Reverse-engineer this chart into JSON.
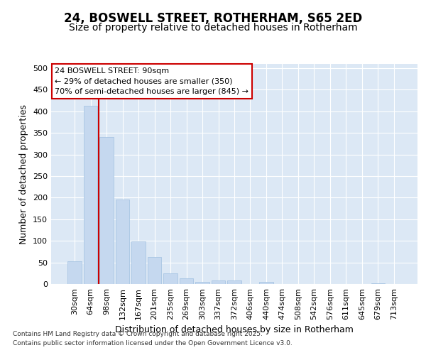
{
  "title_line1": "24, BOSWELL STREET, ROTHERHAM, S65 2ED",
  "title_line2": "Size of property relative to detached houses in Rotherham",
  "xlabel": "Distribution of detached houses by size in Rotherham",
  "ylabel": "Number of detached properties",
  "categories": [
    "30sqm",
    "64sqm",
    "98sqm",
    "132sqm",
    "167sqm",
    "201sqm",
    "235sqm",
    "269sqm",
    "303sqm",
    "337sqm",
    "372sqm",
    "406sqm",
    "440sqm",
    "474sqm",
    "508sqm",
    "542sqm",
    "576sqm",
    "611sqm",
    "645sqm",
    "679sqm",
    "713sqm"
  ],
  "values": [
    53,
    413,
    340,
    195,
    98,
    63,
    25,
    13,
    5,
    8,
    8,
    0,
    5,
    0,
    0,
    0,
    0,
    0,
    0,
    2,
    0
  ],
  "bar_color": "#c5d8ef",
  "bar_edgecolor": "#a0c0e0",
  "vline_color": "#cc0000",
  "annotation_text": "24 BOSWELL STREET: 90sqm\n← 29% of detached houses are smaller (350)\n70% of semi-detached houses are larger (845) →",
  "annotation_box_facecolor": "#ffffff",
  "annotation_box_edgecolor": "#cc0000",
  "ylim": [
    0,
    510
  ],
  "yticks": [
    0,
    50,
    100,
    150,
    200,
    250,
    300,
    350,
    400,
    450,
    500
  ],
  "plot_bg_color": "#dce8f5",
  "fig_bg_color": "#ffffff",
  "footer_text": "Contains HM Land Registry data © Crown copyright and database right 2025.\nContains public sector information licensed under the Open Government Licence v3.0.",
  "title_fontsize": 12,
  "subtitle_fontsize": 10,
  "axis_label_fontsize": 9,
  "tick_fontsize": 8,
  "annotation_fontsize": 8,
  "footer_fontsize": 6.5
}
